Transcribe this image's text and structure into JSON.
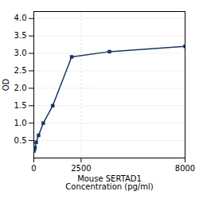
{
  "chart_data": {
    "type": "line",
    "x": [
      0,
      31.25,
      62.5,
      125,
      250,
      500,
      1000,
      2000,
      4000,
      8000
    ],
    "values": [
      0.2,
      0.25,
      0.3,
      0.45,
      0.65,
      1.0,
      1.5,
      2.9,
      3.05,
      3.2
    ],
    "color": "#1a3464",
    "marker": "square",
    "line_style": "solid",
    "xlabel": "Mouse SERTAD1\nConcentration (pg/ml)",
    "ylabel": "OD",
    "xlim": [
      0,
      8000
    ],
    "ylim": [
      0,
      4.2
    ],
    "xticks": [
      0,
      2500,
      8000
    ],
    "yticks": [
      0.5,
      {
        "value": 1.0,
        "label": "1.0"
      },
      1.5,
      {
        "value": 2.0,
        "label": "2.0"
      },
      2.5,
      {
        "value": 3.0,
        "label": "3.0"
      },
      3.5,
      {
        "value": 4.0,
        "label": "4.0"
      }
    ],
    "grid": true
  }
}
